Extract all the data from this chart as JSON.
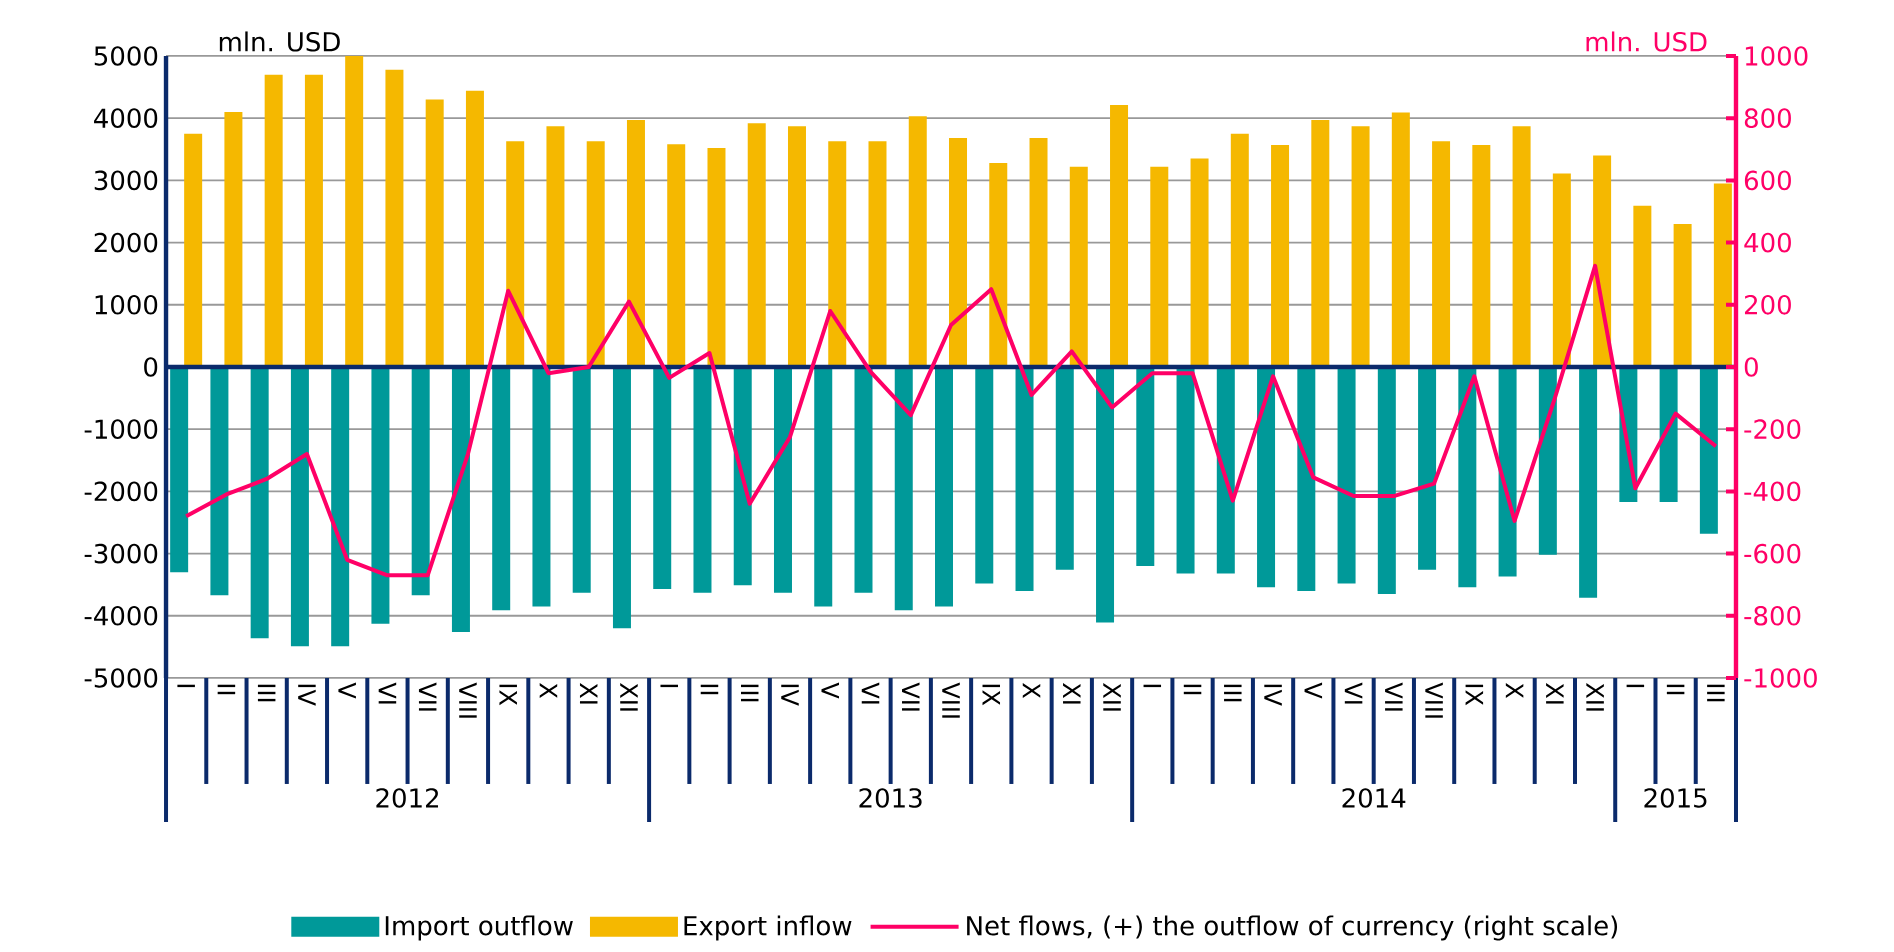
{
  "chart_data": {
    "type": "bar",
    "categories": [
      "I",
      "II",
      "III",
      "IV",
      "V",
      "VI",
      "VII",
      "VIII",
      "IX",
      "X",
      "XI",
      "XII",
      "I",
      "II",
      "III",
      "IV",
      "V",
      "VI",
      "VII",
      "VIII",
      "IX",
      "X",
      "XI",
      "XII",
      "I",
      "II",
      "III",
      "IV",
      "V",
      "VI",
      "VII",
      "VIII",
      "IX",
      "X",
      "XI",
      "XII",
      "I",
      "II",
      "III"
    ],
    "series": [
      {
        "name": "Import outflow",
        "color": "#009999",
        "values": [
          -3300,
          -3670,
          -4360,
          -4490,
          -4490,
          -4130,
          -3670,
          -4260,
          -3910,
          -3850,
          -3630,
          -4200,
          -3570,
          -3630,
          -3510,
          -3630,
          -3850,
          -3630,
          -3910,
          -3850,
          -3480,
          -3600,
          -3260,
          -4110,
          -3200,
          -3320,
          -3320,
          -3540,
          -3600,
          -3480,
          -3650,
          -3260,
          -3540,
          -3370,
          -3020,
          -3710,
          -2170,
          -2170,
          -2680
        ]
      },
      {
        "name": "Export inflow",
        "color": "#f5b800",
        "values": [
          3750,
          4100,
          4700,
          4700,
          5000,
          4780,
          4300,
          4440,
          3630,
          3870,
          3630,
          3970,
          3580,
          3520,
          3920,
          3870,
          3630,
          3630,
          4030,
          3680,
          3280,
          3680,
          3220,
          4210,
          3220,
          3350,
          3750,
          3570,
          3970,
          3870,
          4090,
          3630,
          3570,
          3870,
          3110,
          3400,
          2590,
          2300,
          2950
        ]
      },
      {
        "name": "Net flows, (+) the outflow of currency  (right scale)",
        "type": "line",
        "axis": "y2",
        "color": "#ff0066",
        "values": [
          -480,
          -410,
          -360,
          -280,
          -620,
          -670,
          -670,
          -280,
          245,
          -20,
          0,
          210,
          -35,
          45,
          -440,
          -225,
          180,
          -15,
          -155,
          135,
          250,
          -90,
          50,
          -130,
          -20,
          -20,
          -430,
          -30,
          -355,
          -415,
          -415,
          -375,
          -30,
          -495,
          -100,
          325,
          -390,
          -150,
          -255
        ]
      }
    ],
    "ylabel": "mln. USD",
    "y2label": "mln. USD",
    "ylim": [
      -5000,
      5000
    ],
    "yticks": [
      -5000,
      -4000,
      -3000,
      -2000,
      -1000,
      0,
      1000,
      2000,
      3000,
      4000,
      5000
    ],
    "y2lim": [
      -1000,
      1000
    ],
    "y2ticks": [
      -1000,
      -800,
      -600,
      -400,
      -200,
      0,
      200,
      400,
      600,
      800,
      1000
    ],
    "annotations": [
      "2012",
      "2013",
      "2014",
      "2015"
    ],
    "ref_lines": [
      {
        "axis": "y",
        "value": 0,
        "color": "#0b2a6b"
      }
    ],
    "grid": "y",
    "legend": "bottom",
    "line_style": "solid"
  }
}
